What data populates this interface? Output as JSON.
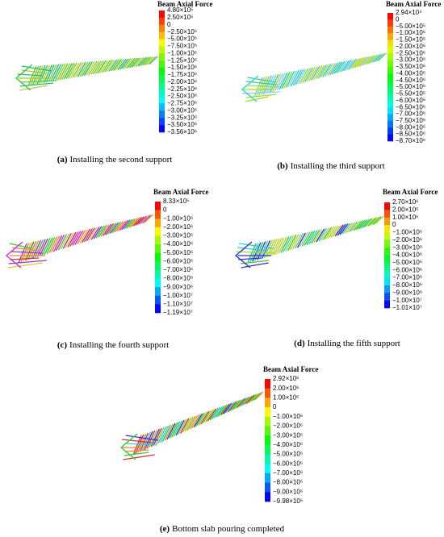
{
  "panels": [
    {
      "legend_title": "Beam Axial Force",
      "labels": [
        "4.80×10⁵",
        "2.50×10⁵",
        "0",
        "−2.50×10⁵",
        "−5.00×10⁵",
        "−7.50×10⁵",
        "−1.00×10⁶",
        "−1.25×10⁶",
        "−1.50×10⁶",
        "−1.75×10⁶",
        "−2.00×10⁶",
        "−2.25×10⁶",
        "−2.50×10⁶",
        "−2.75×10⁶",
        "−3.00×10⁶",
        "−3.25×10⁶",
        "−3.50×10⁶",
        "−3.56×10⁶"
      ],
      "caption_label": "(a)",
      "caption": "Installing the second support"
    },
    {
      "legend_title": "Beam Axial Force",
      "labels": [
        "2.94×10⁴",
        "0",
        "−5.00×10⁵",
        "−1.00×10⁶",
        "−1.50×10⁶",
        "−2.00×10⁶",
        "−2.50×10⁶",
        "−3.00×10⁶",
        "−3.50×10⁶",
        "−4.00×10⁶",
        "−4.50×10⁶",
        "−5.00×10⁶",
        "−5.50×10⁶",
        "−6.00×10⁶",
        "−6.50×10⁶",
        "−7.00×10⁶",
        "−7.50×10⁶",
        "−8.00×10⁶",
        "−8.50×10⁶",
        "−8.70×10⁶"
      ],
      "caption_label": "(b)",
      "caption": "Installing the third support"
    },
    {
      "legend_title": "Beam Axial Force",
      "labels": [
        "8.33×10⁵",
        "0",
        "−1.00×10⁶",
        "−2.00×10⁶",
        "−3.00×10⁶",
        "−4.00×10⁶",
        "−5.00×10⁶",
        "−6.00×10⁶",
        "−7.00×10⁶",
        "−8.00×10⁶",
        "−9.00×10⁶",
        "−1.00×10⁷",
        "−1.10×10⁷",
        "−1.19×10⁷"
      ],
      "caption_label": "(c)",
      "caption": "Installing the fourth support"
    },
    {
      "legend_title": "Beam Axial Force",
      "labels": [
        "2.70×10⁶",
        "2.00×10⁶",
        "1.00×10⁶",
        "0",
        "−1.00×10⁶",
        "−2.00×10⁶",
        "−3.00×10⁶",
        "−4.00×10⁶",
        "−5.00×10⁶",
        "−6.00×10⁶",
        "−7.00×10⁶",
        "−8.00×10⁶",
        "−9.00×10⁶",
        "−1.00×10⁷",
        "−1.01×10⁷"
      ],
      "caption_label": "(d)",
      "caption": "Installing the fifth support"
    },
    {
      "legend_title": "Beam Axial Force",
      "labels": [
        "2.92×10⁶",
        "2.00×10⁶",
        "1.00×10⁶",
        "0",
        "−1.00×10⁶",
        "−2.00×10⁶",
        "−3.00×10⁶",
        "−4.00×10⁶",
        "−5.00×10⁶",
        "−6.00×10⁶",
        "−7.00×10⁶",
        "−8.00×10⁶",
        "−9.00×10⁶",
        "−9.98×10⁶"
      ],
      "caption_label": "(e)",
      "caption": "Bottom slab pouring completed"
    }
  ]
}
